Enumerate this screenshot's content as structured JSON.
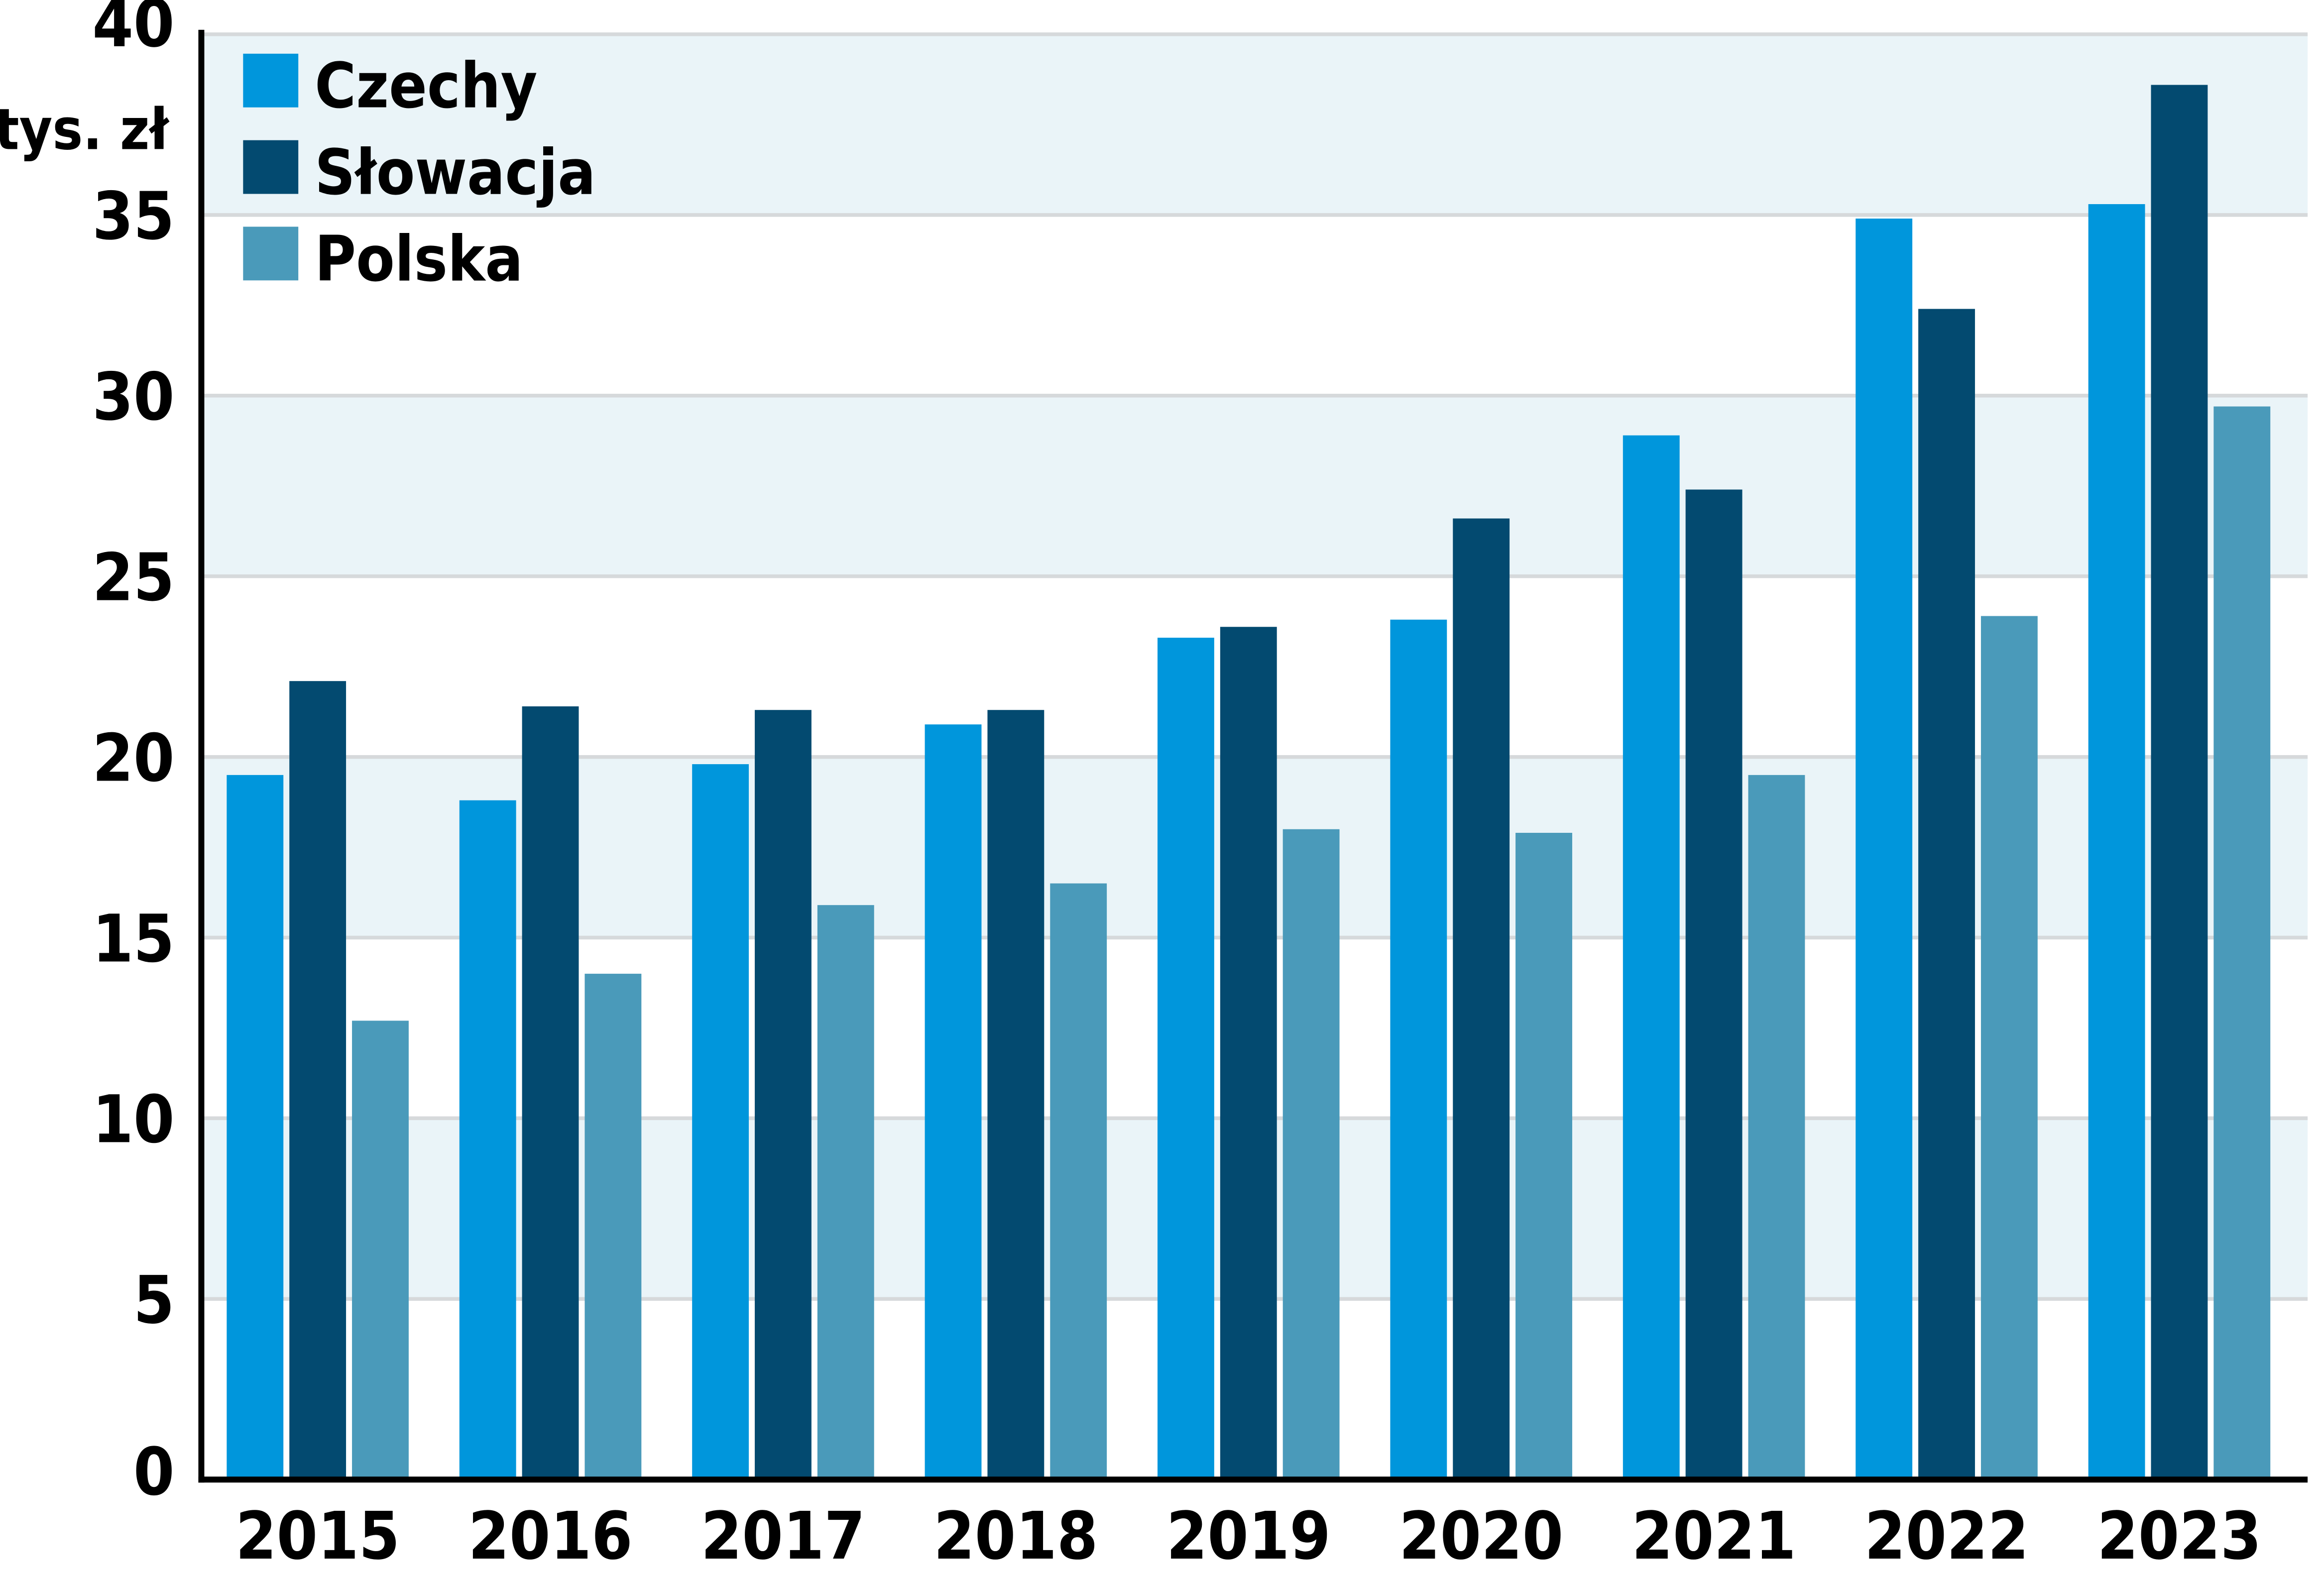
{
  "chart_data": {
    "type": "bar",
    "title": "",
    "xlabel": "",
    "ylabel": "tys. zł",
    "ylim": [
      0,
      40
    ],
    "yticks": [
      0,
      5,
      10,
      15,
      20,
      25,
      30,
      35,
      40
    ],
    "grid": true,
    "legend_position": "top-left",
    "categories": [
      "2015",
      "2016",
      "2017",
      "2018",
      "2019",
      "2020",
      "2021",
      "2022",
      "2023"
    ],
    "series": [
      {
        "name": "Czechy",
        "color": "#0096dc",
        "values": [
          19.5,
          18.8,
          19.8,
          20.9,
          23.3,
          23.8,
          28.9,
          34.9,
          35.3
        ]
      },
      {
        "name": "Słowacja",
        "color": "#034a70",
        "values": [
          22.1,
          21.4,
          21.3,
          21.3,
          23.6,
          26.6,
          27.4,
          32.4,
          38.6
        ]
      },
      {
        "name": "Polska",
        "color": "#4a9aba",
        "values": [
          12.7,
          14.0,
          15.9,
          16.5,
          18.0,
          17.9,
          19.5,
          23.9,
          29.7
        ]
      }
    ],
    "band_color": "#eaf4f8",
    "grid_color": "#d6d9db"
  }
}
